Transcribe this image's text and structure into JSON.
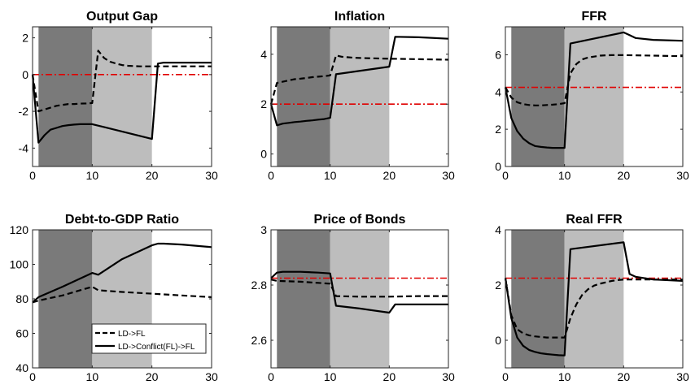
{
  "colors": {
    "dark_shade": "#7a7a7a",
    "light_shade": "#bdbdbd",
    "reference_line": "#e00000",
    "series": "#000000"
  },
  "legend": {
    "entries": [
      "LD->FL",
      "LD->Conflict(FL)->FL"
    ]
  },
  "chart_data": [
    {
      "type": "line",
      "title": "Output Gap",
      "xlabel": "",
      "ylabel": "",
      "xlim": [
        0,
        30
      ],
      "ylim": [
        -5,
        2.6
      ],
      "xticks": [
        0,
        10,
        20,
        30
      ],
      "yticks": [
        -4,
        -2,
        0,
        2
      ],
      "shaded_regions": [
        {
          "from": 1,
          "to": 10,
          "shade": "dark"
        },
        {
          "from": 10,
          "to": 20,
          "shade": "light"
        }
      ],
      "reference_line": 0,
      "series": [
        {
          "style": "dashed",
          "x": [
            0,
            1,
            2,
            3,
            4,
            5,
            6,
            7,
            8,
            9,
            10,
            11,
            12,
            13,
            14,
            15,
            16,
            17,
            18,
            19,
            20,
            21,
            22,
            23,
            24,
            25,
            26,
            27,
            28,
            29,
            30
          ],
          "y": [
            0,
            -2.0,
            -1.9,
            -1.8,
            -1.7,
            -1.65,
            -1.6,
            -1.6,
            -1.58,
            -1.57,
            -1.55,
            1.3,
            0.9,
            0.7,
            0.6,
            0.52,
            0.48,
            0.46,
            0.45,
            0.45,
            0.45,
            0.45,
            0.45,
            0.45,
            0.45,
            0.45,
            0.45,
            0.45,
            0.45,
            0.45,
            0.45
          ]
        },
        {
          "style": "solid",
          "x": [
            0,
            1,
            2,
            3,
            4,
            5,
            6,
            7,
            8,
            9,
            10,
            20,
            21,
            22,
            23,
            24,
            25,
            26,
            27,
            28,
            29,
            30
          ],
          "y": [
            0,
            -3.7,
            -3.3,
            -3.0,
            -2.9,
            -2.8,
            -2.75,
            -2.72,
            -2.7,
            -2.7,
            -2.7,
            -3.5,
            0.6,
            0.65,
            0.65,
            0.65,
            0.65,
            0.65,
            0.65,
            0.65,
            0.65,
            0.65
          ]
        }
      ]
    },
    {
      "type": "line",
      "title": "Inflation",
      "xlabel": "",
      "ylabel": "",
      "xlim": [
        0,
        30
      ],
      "ylim": [
        -0.5,
        5.1
      ],
      "xticks": [
        0,
        10,
        20,
        30
      ],
      "yticks": [
        0,
        2,
        4
      ],
      "shaded_regions": [
        {
          "from": 1,
          "to": 10,
          "shade": "dark"
        },
        {
          "from": 10,
          "to": 20,
          "shade": "light"
        }
      ],
      "reference_line": 2.0,
      "series": [
        {
          "style": "dashed",
          "x": [
            0,
            1,
            2,
            3,
            4,
            5,
            6,
            7,
            8,
            9,
            10,
            11,
            12,
            13,
            14,
            15,
            20,
            25,
            30
          ],
          "y": [
            2.0,
            2.85,
            2.9,
            2.95,
            3.0,
            3.02,
            3.05,
            3.08,
            3.1,
            3.12,
            3.15,
            3.95,
            3.9,
            3.88,
            3.86,
            3.85,
            3.82,
            3.8,
            3.78
          ]
        },
        {
          "style": "solid",
          "x": [
            0,
            1,
            2,
            3,
            4,
            5,
            6,
            7,
            8,
            9,
            10,
            11,
            20,
            21,
            25,
            30
          ],
          "y": [
            2.0,
            1.15,
            1.22,
            1.25,
            1.28,
            1.3,
            1.33,
            1.35,
            1.38,
            1.4,
            1.45,
            3.2,
            3.5,
            4.7,
            4.68,
            4.62
          ]
        }
      ]
    },
    {
      "type": "line",
      "title": "FFR",
      "xlabel": "",
      "ylabel": "",
      "xlim": [
        0,
        30
      ],
      "ylim": [
        0,
        7.5
      ],
      "xticks": [
        0,
        10,
        20,
        30
      ],
      "yticks": [
        0,
        2,
        4,
        6
      ],
      "shaded_regions": [
        {
          "from": 1,
          "to": 10,
          "shade": "dark"
        },
        {
          "from": 10,
          "to": 20,
          "shade": "light"
        }
      ],
      "reference_line": 4.25,
      "series": [
        {
          "style": "dashed",
          "x": [
            0,
            1,
            2,
            3,
            4,
            5,
            6,
            7,
            8,
            9,
            10,
            11,
            12,
            13,
            14,
            15,
            16,
            17,
            18,
            20,
            25,
            30
          ],
          "y": [
            4.25,
            3.7,
            3.45,
            3.35,
            3.3,
            3.28,
            3.28,
            3.3,
            3.32,
            3.35,
            3.4,
            5.0,
            5.5,
            5.75,
            5.85,
            5.9,
            5.95,
            5.97,
            5.98,
            5.98,
            5.95,
            5.92
          ]
        },
        {
          "style": "solid",
          "x": [
            0,
            1,
            2,
            3,
            4,
            5,
            6,
            7,
            8,
            9,
            10,
            11,
            20,
            21,
            22,
            25,
            30
          ],
          "y": [
            4.25,
            2.6,
            1.9,
            1.5,
            1.25,
            1.1,
            1.05,
            1.02,
            1.0,
            1.0,
            1.0,
            6.6,
            7.2,
            7.05,
            6.9,
            6.8,
            6.75
          ]
        }
      ]
    },
    {
      "type": "line",
      "title": "Debt-to-GDP Ratio",
      "xlabel": "",
      "ylabel": "",
      "xlim": [
        0,
        30
      ],
      "ylim": [
        40,
        120
      ],
      "xticks": [
        0,
        10,
        20,
        30
      ],
      "yticks": [
        40,
        60,
        80,
        100,
        120
      ],
      "shaded_regions": [
        {
          "from": 1,
          "to": 10,
          "shade": "dark"
        },
        {
          "from": 10,
          "to": 20,
          "shade": "light"
        }
      ],
      "series": [
        {
          "style": "dashed",
          "x": [
            0,
            1,
            5,
            10,
            11,
            15,
            20,
            25,
            30
          ],
          "y": [
            78,
            79,
            82,
            87,
            85,
            84,
            83,
            82,
            81
          ]
        },
        {
          "style": "solid",
          "x": [
            0,
            1,
            5,
            10,
            11,
            15,
            20,
            21,
            22,
            25,
            30
          ],
          "y": [
            78,
            81,
            87,
            95,
            94,
            103,
            111,
            112,
            112,
            111.5,
            110
          ]
        }
      ]
    },
    {
      "type": "line",
      "title": "Price of Bonds",
      "xlabel": "",
      "ylabel": "",
      "xlim": [
        0,
        30
      ],
      "ylim": [
        2.5,
        3.0
      ],
      "xticks": [
        0,
        10,
        20,
        30
      ],
      "yticks": [
        2.6,
        2.8,
        3.0
      ],
      "shaded_regions": [
        {
          "from": 1,
          "to": 10,
          "shade": "dark"
        },
        {
          "from": 10,
          "to": 20,
          "shade": "light"
        }
      ],
      "reference_line": 2.825,
      "series": [
        {
          "style": "dashed",
          "x": [
            0,
            1,
            5,
            10,
            11,
            15,
            20,
            25,
            30
          ],
          "y": [
            2.82,
            2.815,
            2.812,
            2.805,
            2.76,
            2.758,
            2.758,
            2.76,
            2.76
          ]
        },
        {
          "style": "solid",
          "x": [
            0,
            1,
            2,
            5,
            8,
            10,
            11,
            15,
            20,
            21,
            25,
            30
          ],
          "y": [
            2.825,
            2.845,
            2.848,
            2.848,
            2.845,
            2.842,
            2.725,
            2.715,
            2.7,
            2.73,
            2.73,
            2.73
          ]
        }
      ]
    },
    {
      "type": "line",
      "title": "Real FFR",
      "xlabel": "",
      "ylabel": "",
      "xlim": [
        0,
        30
      ],
      "ylim": [
        -1,
        4
      ],
      "xticks": [
        0,
        10,
        20,
        30
      ],
      "yticks": [
        0,
        2,
        4
      ],
      "shaded_regions": [
        {
          "from": 1,
          "to": 10,
          "shade": "dark"
        },
        {
          "from": 10,
          "to": 20,
          "shade": "light"
        }
      ],
      "reference_line": 2.25,
      "series": [
        {
          "style": "dashed",
          "x": [
            0,
            1,
            2,
            3,
            4,
            5,
            6,
            7,
            8,
            9,
            10,
            11,
            12,
            13,
            14,
            15,
            16,
            17,
            18,
            19,
            20,
            25,
            30
          ],
          "y": [
            2.25,
            0.9,
            0.4,
            0.25,
            0.18,
            0.14,
            0.12,
            0.1,
            0.1,
            0.1,
            0.1,
            0.8,
            1.3,
            1.65,
            1.85,
            1.98,
            2.05,
            2.1,
            2.15,
            2.18,
            2.2,
            2.2,
            2.2
          ]
        },
        {
          "style": "solid",
          "x": [
            0,
            1,
            2,
            3,
            4,
            5,
            6,
            7,
            8,
            9,
            10,
            11,
            20,
            21,
            22,
            25,
            30
          ],
          "y": [
            2.25,
            0.8,
            0.1,
            -0.2,
            -0.35,
            -0.42,
            -0.47,
            -0.5,
            -0.52,
            -0.54,
            -0.55,
            3.3,
            3.55,
            2.4,
            2.3,
            2.2,
            2.15
          ]
        }
      ]
    }
  ]
}
